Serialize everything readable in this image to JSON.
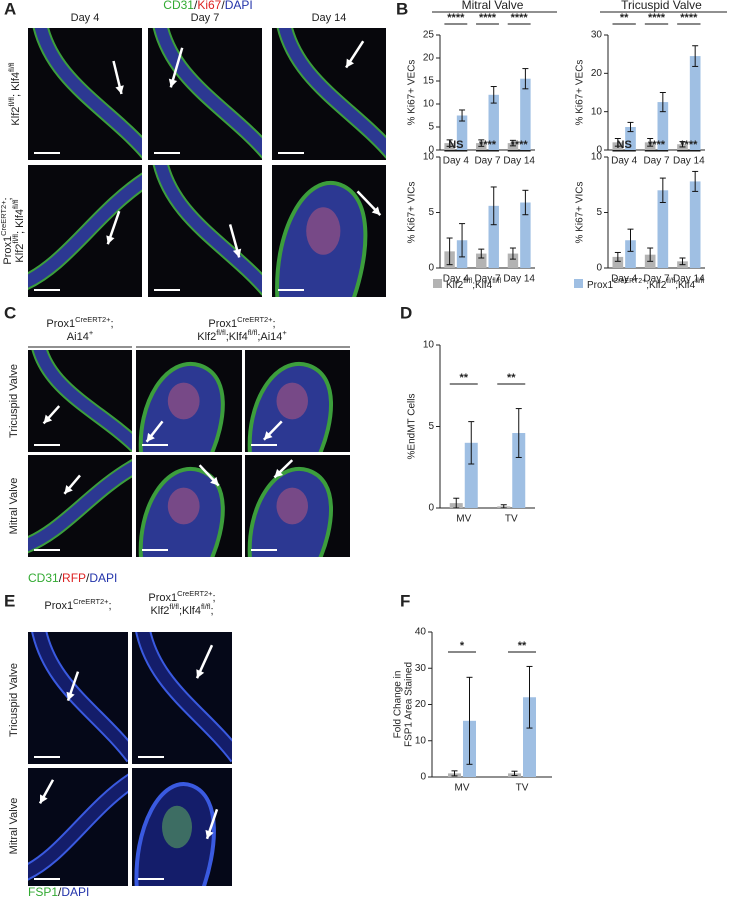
{
  "panel_labels": [
    "A",
    "B",
    "C",
    "D",
    "E",
    "F"
  ],
  "panel_a": {
    "stain": [
      {
        "text": "CD31",
        "color": "#33aa33"
      },
      {
        "text": "/",
        "color": "#222222"
      },
      {
        "text": "Ki67",
        "color": "#dd2222"
      },
      {
        "text": "/",
        "color": "#222222"
      },
      {
        "text": "DAPI",
        "color": "#2233aa"
      }
    ],
    "columns": [
      "Day 4",
      "Day 7",
      "Day 14"
    ],
    "rows": [
      [
        [
          "Klf2",
          "fl/fl",
          "; Klf4",
          "fl/fl"
        ]
      ],
      [
        [
          "Prox1",
          "CreERT2+",
          ";"
        ],
        [
          "Klf2",
          "fl/fl",
          "; Klf4",
          "fl/fl"
        ]
      ]
    ]
  },
  "chart_data": [
    {
      "type": "bar",
      "title": "Mitral Valve",
      "ylabel": "% Ki67+ VECs",
      "categories": [
        "Day 4",
        "Day 7",
        "Day 14"
      ],
      "series": [
        {
          "name": [
            "Klf2",
            "fl/fl",
            ";Klf4",
            "fl/fl"
          ],
          "color": "#b3b3b3",
          "values": [
            1.5,
            1.5,
            1.5
          ],
          "errors": [
            0.7,
            0.7,
            0.6
          ]
        },
        {
          "name": [
            "Prox1",
            "CreERT2+",
            ";Klf2",
            "fl/fl",
            ";Klf4",
            "fl/fl"
          ],
          "color": "#9fbfe3",
          "values": [
            7.5,
            12,
            15.5
          ],
          "errors": [
            1.2,
            1.8,
            2.2
          ]
        }
      ],
      "significance": [
        "****",
        "****",
        "****"
      ],
      "ylim": [
        0,
        25
      ],
      "yticks": [
        0,
        5,
        10,
        15,
        20,
        25
      ]
    },
    {
      "type": "bar",
      "title": "Tricuspid Valve",
      "ylabel": "% Ki67+ VECs",
      "categories": [
        "Day 4",
        "Day 7",
        "Day 14"
      ],
      "series": [
        {
          "color": "#b3b3b3",
          "values": [
            2,
            2,
            1.5
          ],
          "errors": [
            1,
            1,
            0.7
          ]
        },
        {
          "color": "#9fbfe3",
          "values": [
            6,
            12.5,
            24.5
          ],
          "errors": [
            1.2,
            2.5,
            2.7
          ]
        }
      ],
      "significance": [
        "**",
        "****",
        "****"
      ],
      "ylim": [
        0,
        30
      ],
      "yticks": [
        0,
        10,
        20,
        30
      ]
    },
    {
      "type": "bar",
      "ylabel": "% Ki67+ VICs",
      "categories": [
        "Day 4",
        "Day 7",
        "Day 14"
      ],
      "series": [
        {
          "color": "#b3b3b3",
          "values": [
            1.5,
            1.3,
            1.3
          ],
          "errors": [
            1.2,
            0.4,
            0.5
          ]
        },
        {
          "color": "#9fbfe3",
          "values": [
            2.5,
            5.6,
            5.9
          ],
          "errors": [
            1.5,
            1.7,
            1.1
          ]
        }
      ],
      "significance": [
        "NS",
        "****",
        "****"
      ],
      "ylim": [
        0,
        10
      ],
      "yticks": [
        0,
        5,
        10
      ]
    },
    {
      "type": "bar",
      "ylabel": "% Ki67+ VICs",
      "categories": [
        "Day 4",
        "Day 7",
        "Day 14"
      ],
      "series": [
        {
          "color": "#b3b3b3",
          "values": [
            1,
            1.2,
            0.6
          ],
          "errors": [
            0.4,
            0.6,
            0.3
          ]
        },
        {
          "color": "#9fbfe3",
          "values": [
            2.5,
            7,
            7.8
          ],
          "errors": [
            1,
            1.1,
            0.9
          ]
        }
      ],
      "significance": [
        "NS",
        "****",
        "****"
      ],
      "ylim": [
        0,
        10
      ],
      "yticks": [
        0,
        5,
        10
      ]
    },
    {
      "type": "bar",
      "ylabel": "%EndMT Cells",
      "categories": [
        "MV",
        "TV"
      ],
      "series": [
        {
          "color": "#b3b3b3",
          "values": [
            0.3,
            0.1
          ],
          "errors": [
            0.3,
            0.1
          ]
        },
        {
          "color": "#9fbfe3",
          "values": [
            4,
            4.6
          ],
          "errors": [
            1.3,
            1.5
          ]
        }
      ],
      "significance": [
        "**",
        "**"
      ],
      "ylim": [
        0,
        10
      ],
      "yticks": [
        0,
        5,
        10
      ]
    },
    {
      "type": "bar",
      "ylabel": [
        "Fold Change in",
        "FSP1 Area Stained"
      ],
      "categories": [
        "MV",
        "TV"
      ],
      "series": [
        {
          "color": "#b3b3b3",
          "values": [
            1,
            1
          ],
          "errors": [
            0.7,
            0.6
          ]
        },
        {
          "color": "#9fbfe3",
          "values": [
            15.5,
            22
          ],
          "errors": [
            12,
            8.5
          ]
        }
      ],
      "significance": [
        "*",
        "**"
      ],
      "ylim": [
        0,
        40
      ],
      "yticks": [
        0,
        10,
        20,
        30,
        40
      ]
    }
  ],
  "panel_c": {
    "columns": [
      [
        [
          "Prox1",
          "CreERT2+",
          ";"
        ],
        [
          "Ai14",
          "+"
        ]
      ],
      [
        [
          "Prox1",
          "CreERT2+",
          ";"
        ],
        [
          "Klf2",
          "fl/fl",
          ";Klf4",
          "fl/fl",
          ";Ai14",
          "+"
        ]
      ]
    ],
    "rows": [
      [
        [
          "Tricuspid Valve"
        ]
      ],
      [
        [
          "Mitral Valve"
        ]
      ]
    ],
    "stain": [
      {
        "text": "CD31",
        "color": "#33aa33"
      },
      {
        "text": "/",
        "color": "#222222"
      },
      {
        "text": "RFP",
        "color": "#dd2222"
      },
      {
        "text": "/",
        "color": "#222222"
      },
      {
        "text": "DAPI",
        "color": "#2233aa"
      }
    ]
  },
  "panel_e": {
    "columns": [
      [
        [
          "Prox1",
          "CreERT2+",
          ";"
        ]
      ],
      [
        [
          "Prox1",
          "CreERT2+",
          ";"
        ],
        [
          "Klf2",
          "fl/fl",
          ";Klf4",
          "fl/fl",
          ";"
        ]
      ]
    ],
    "rows": [
      [
        [
          "Tricuspid Valve"
        ]
      ],
      [
        [
          "Mitral Valve"
        ]
      ]
    ],
    "stain": [
      {
        "text": "FSP1",
        "color": "#33aa33"
      },
      {
        "text": "/",
        "color": "#222222"
      },
      {
        "text": "DAPI",
        "color": "#2233aa"
      }
    ]
  }
}
